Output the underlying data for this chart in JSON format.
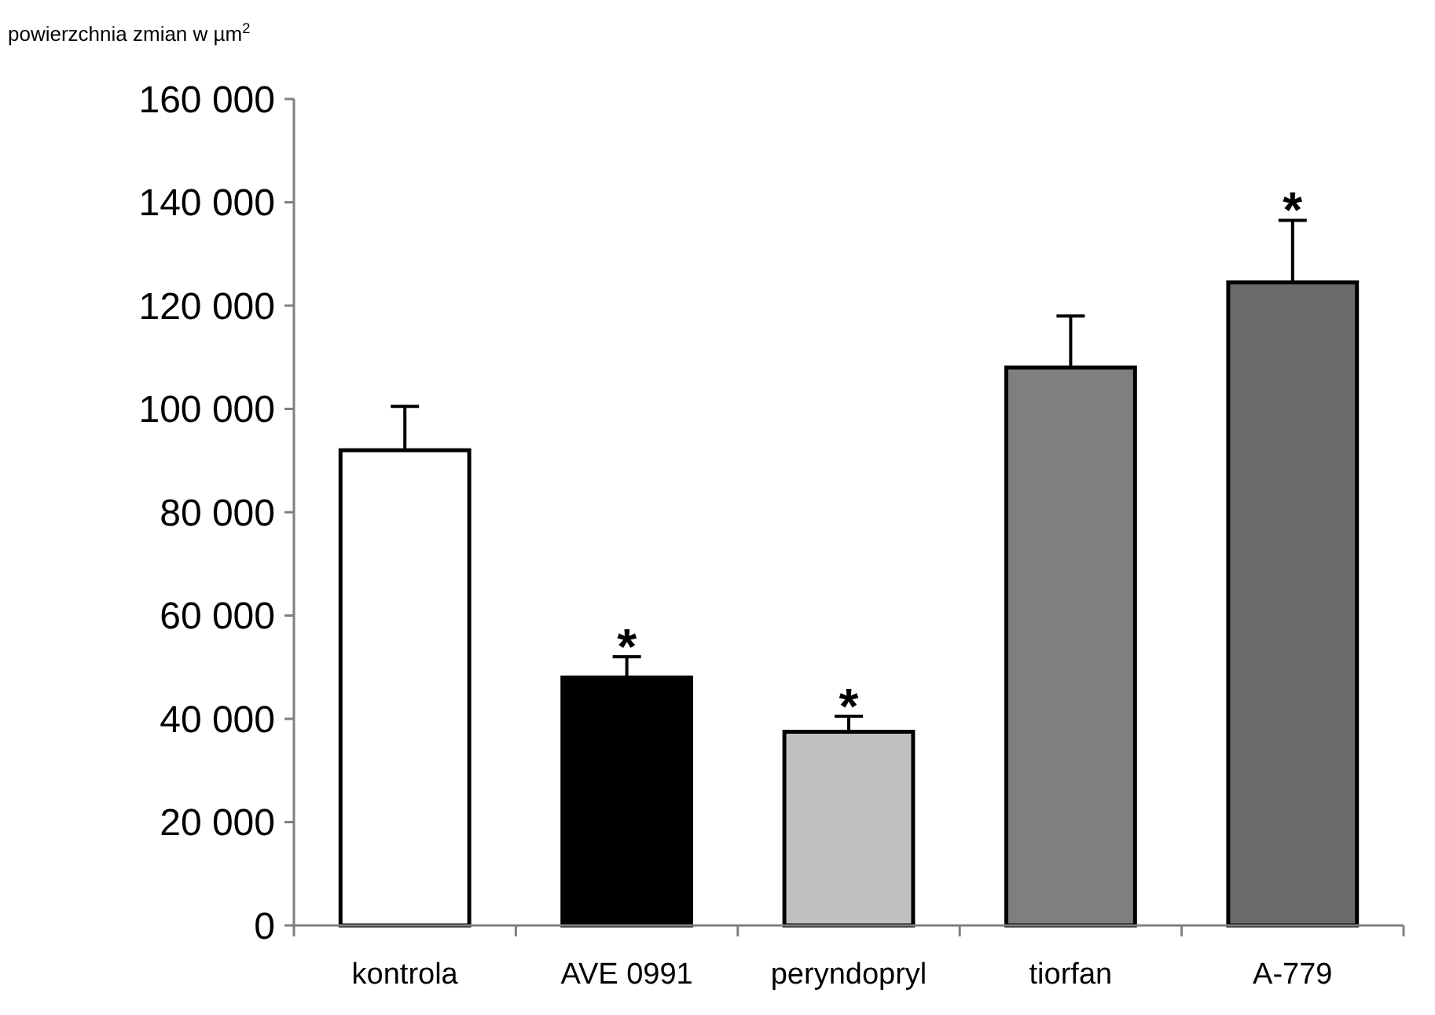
{
  "chart_data": {
    "type": "bar",
    "ylabel": "powierzchnia zmian w µm$^{2}$",
    "categories": [
      "kontrola",
      "AVE 0991",
      "peryndopryl",
      "tiorfan",
      "A-779"
    ],
    "values": [
      92000,
      48000,
      37500,
      108000,
      124500
    ],
    "colors": [
      "#ffffff",
      "#000000",
      "#c0c0c0",
      "#7f7f7f",
      "#6a6a6a"
    ],
    "errors": [
      [
        92000,
        100500
      ],
      [
        48000,
        52000
      ],
      [
        37500,
        40500
      ],
      [
        108000,
        118000
      ],
      [
        124500,
        136500
      ]
    ],
    "ylim": [
      0,
      160000
    ],
    "yticks": [
      {
        "value": 0,
        "label": "0"
      },
      {
        "value": 20000,
        "label": "20 000"
      },
      {
        "value": 40000,
        "label": "40 000"
      },
      {
        "value": 60000,
        "label": "60 000"
      },
      {
        "value": 80000,
        "label": "80 000"
      },
      {
        "value": 100000,
        "label": "100 000"
      },
      {
        "value": 120000,
        "label": "120 000"
      },
      {
        "value": 140000,
        "label": "140 000"
      },
      {
        "value": 160000,
        "label": "160 000"
      }
    ],
    "annotations": [
      {
        "text": "*",
        "x": "AVE 0991",
        "y": 52000
      },
      {
        "text": "*",
        "x": "peryndopryl",
        "y": 40500
      },
      {
        "text": "*",
        "x": "A-779",
        "y": 136500
      }
    ],
    "grid": false
  }
}
